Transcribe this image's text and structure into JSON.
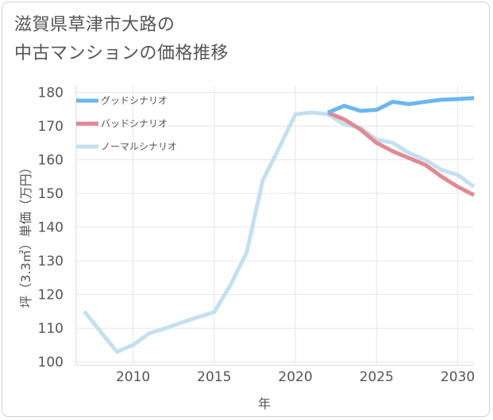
{
  "title": {
    "line1": "滋賀県草津市大路の",
    "line2": "中古マンションの価格推移"
  },
  "chart_data": {
    "type": "line",
    "xlabel": "年",
    "ylabel": "坪（3.3㎡）単価（万円）",
    "xlim": [
      2006.5,
      2031
    ],
    "ylim": [
      99,
      182
    ],
    "xticks": [
      2010,
      2015,
      2020,
      2025,
      2030
    ],
    "yticks": [
      100,
      110,
      120,
      130,
      140,
      150,
      160,
      170,
      180
    ],
    "grid": true,
    "legend_position": "top-left",
    "series": [
      {
        "name": "ノーマルシナリオ",
        "color": "#c4e0ee",
        "x": [
          2007,
          2009,
          2010,
          2011,
          2012,
          2013,
          2014,
          2015,
          2016,
          2017,
          2018,
          2019,
          2020,
          2021,
          2022,
          2023,
          2024,
          2025,
          2026,
          2027,
          2028,
          2029,
          2030,
          2031
        ],
        "y": [
          115,
          103,
          105,
          108.5,
          110,
          111.7,
          113.3,
          114.8,
          122.8,
          132.5,
          154,
          163.5,
          173.5,
          174,
          173.5,
          170.5,
          169.5,
          166,
          165,
          162,
          160,
          157,
          155.5,
          152
        ]
      },
      {
        "name": "バッドシナリオ",
        "color": "#e08a93",
        "x": [
          2022,
          2023,
          2024,
          2025,
          2026,
          2027,
          2028,
          2029,
          2030,
          2031
        ],
        "y": [
          174,
          172,
          169,
          165,
          162.5,
          160.5,
          158.5,
          155,
          152,
          149.5
        ]
      },
      {
        "name": "グッドシナリオ",
        "color": "#6bb7ee",
        "x": [
          2022,
          2023,
          2024,
          2025,
          2026,
          2027,
          2028,
          2029,
          2030,
          2031
        ],
        "y": [
          174,
          176,
          174.5,
          174.8,
          177.2,
          176.5,
          177.2,
          177.8,
          178,
          178.3
        ]
      }
    ],
    "legend_order": [
      "グッドシナリオ",
      "バッドシナリオ",
      "ノーマルシナリオ"
    ]
  }
}
